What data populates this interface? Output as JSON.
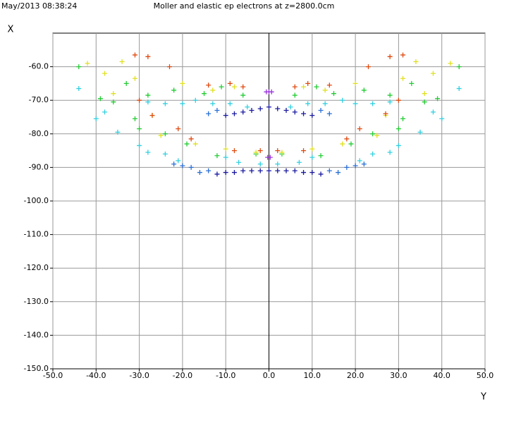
{
  "chart_data": {
    "type": "scatter",
    "timestamp": "May/2013 08:38:24",
    "title": "Moller and elastic ep electrons at z=2800.0cm",
    "x_label": "Y",
    "y_label": "X",
    "xlim": [
      -50,
      50
    ],
    "xticks": [
      {
        "value": -50,
        "label": "-50.0"
      },
      {
        "value": -40,
        "label": "-40.0"
      },
      {
        "value": -30,
        "label": "-30.0"
      },
      {
        "value": -20,
        "label": "-20.0"
      },
      {
        "value": -10,
        "label": "-10.0"
      },
      {
        "value": 0,
        "label": "0.0"
      },
      {
        "value": 10,
        "label": "10.0"
      },
      {
        "value": 20,
        "label": "20.0"
      },
      {
        "value": 30,
        "label": "30.0"
      },
      {
        "value": 40,
        "label": "40.0"
      },
      {
        "value": 50,
        "label": "50.0"
      }
    ],
    "ylim": [
      -150,
      -50
    ],
    "yticks": [
      {
        "value": -60,
        "label": "-60.0"
      },
      {
        "value": -70,
        "label": "-70.0"
      },
      {
        "value": -80,
        "label": "-80.0"
      },
      {
        "value": -90,
        "label": "-90.0"
      },
      {
        "value": -100,
        "label": "-100.0"
      },
      {
        "value": -110,
        "label": "-110.0"
      },
      {
        "value": -120,
        "label": "-120.0"
      },
      {
        "value": -130,
        "label": "-130.0"
      },
      {
        "value": -140,
        "label": "-140.0"
      },
      {
        "value": -150,
        "label": "-150.0"
      }
    ],
    "grid": true,
    "series": [
      {
        "color": "#1a1aa0",
        "x": [
          -10,
          -8,
          -6,
          -4,
          -2,
          0,
          2,
          4,
          6,
          8,
          10,
          -12,
          -10,
          -8,
          -6,
          -4,
          -2,
          0,
          2,
          4,
          6,
          8,
          10,
          12
        ],
        "values": [
          -74.5,
          -74,
          -73.5,
          -73,
          -72.5,
          -72,
          -72.5,
          -73,
          -73.5,
          -74,
          -74.5,
          -92,
          -91.5,
          -91.5,
          -91,
          -91,
          -91,
          -91,
          -91,
          -91,
          -91,
          -91.5,
          -91.5,
          -92
        ]
      },
      {
        "color": "#2a6fd6",
        "x": [
          -14,
          -12,
          12,
          14,
          -22,
          -20,
          -18,
          -16,
          -14,
          14,
          16,
          18,
          20,
          22
        ],
        "values": [
          -74,
          -73,
          -73,
          -74,
          -89,
          -89.5,
          -90,
          -91.5,
          -91,
          -91,
          -91.5,
          -90,
          -89.5,
          -89
        ]
      },
      {
        "color": "#33d0e0",
        "x": [
          -28,
          -24,
          -20,
          -17,
          -13,
          -9,
          -5,
          5,
          9,
          13,
          17,
          20,
          24,
          28,
          -38,
          38,
          -40,
          40,
          -30,
          -28,
          -24,
          -21,
          -10,
          -7,
          -2,
          2,
          7,
          10,
          21,
          24,
          28,
          30,
          -35,
          35,
          -44,
          44
        ],
        "values": [
          -70.5,
          -71,
          -71,
          -70,
          -71,
          -71,
          -72,
          -72,
          -71,
          -71,
          -70,
          -71,
          -71,
          -70.5,
          -73.5,
          -73.5,
          -75.5,
          -75.5,
          -83.5,
          -85.5,
          -86,
          -88,
          -87,
          -88.5,
          -89,
          -89,
          -88.5,
          -87,
          -88,
          -86,
          -85.5,
          -83.5,
          -79.5,
          -79.5,
          -66.5,
          -66.5
        ]
      },
      {
        "color": "#22cc33",
        "x": [
          -44,
          44,
          -39,
          39,
          -36,
          36,
          -33,
          33,
          -31,
          31,
          -30,
          30,
          -28,
          28,
          -24,
          24,
          -22,
          22,
          -19,
          19,
          -15,
          15,
          -12,
          12,
          -11,
          11,
          -3,
          3,
          -6,
          6
        ],
        "values": [
          -60,
          -60,
          -69.5,
          -69.5,
          -70.5,
          -70.5,
          -65,
          -65,
          -75.5,
          -75.5,
          -78.5,
          -78.5,
          -68.5,
          -68.5,
          -80,
          -80,
          -67,
          -67,
          -83,
          -83,
          -68,
          -68,
          -86.5,
          -86.5,
          -66,
          -66,
          -86,
          -86,
          -68.5,
          -68.5
        ]
      },
      {
        "color": "#e0e020",
        "x": [
          -42,
          42,
          -38,
          38,
          -36,
          36,
          -34,
          34,
          -31,
          31,
          -27,
          27,
          -25,
          25,
          -20,
          20,
          -17,
          17,
          -13,
          13,
          -10,
          10,
          -3,
          3,
          -8,
          8
        ],
        "values": [
          -59,
          -59,
          -62,
          -62,
          -68,
          -68,
          -58.5,
          -58.5,
          -63.5,
          -63.5,
          -74.5,
          -74.5,
          -80.5,
          -80.5,
          -65,
          -65,
          -83,
          -83,
          -67,
          -67,
          -84.5,
          -84.5,
          -85.5,
          -85.5,
          -66,
          -66
        ]
      },
      {
        "color": "#e04a10",
        "x": [
          -31,
          31,
          -28,
          28,
          -30,
          30,
          -27,
          27,
          -23,
          23,
          -21,
          21,
          -18,
          18,
          -14,
          14,
          -9,
          9,
          -8,
          8,
          -6,
          6,
          -2,
          2
        ],
        "values": [
          -56.5,
          -56.5,
          -57,
          -57,
          -70,
          -70,
          -74.5,
          -74,
          -60,
          -60,
          -78.5,
          -78.5,
          -81.5,
          -81.5,
          -65.5,
          -65.5,
          -65,
          -65,
          -85,
          -85,
          -66,
          -66,
          -85,
          -85
        ]
      },
      {
        "color": "#9933dd",
        "x": [
          -0.6,
          0,
          0.6,
          -0.3,
          0.3
        ],
        "values": [
          -67.5,
          -67.5,
          -67.5,
          -87,
          -87
        ]
      }
    ]
  }
}
